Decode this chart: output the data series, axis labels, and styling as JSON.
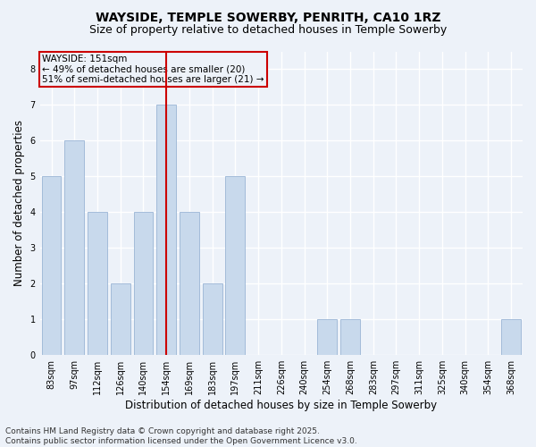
{
  "title1": "WAYSIDE, TEMPLE SOWERBY, PENRITH, CA10 1RZ",
  "title2": "Size of property relative to detached houses in Temple Sowerby",
  "xlabel": "Distribution of detached houses by size in Temple Sowerby",
  "ylabel": "Number of detached properties",
  "categories": [
    "83sqm",
    "97sqm",
    "112sqm",
    "126sqm",
    "140sqm",
    "154sqm",
    "169sqm",
    "183sqm",
    "197sqm",
    "211sqm",
    "226sqm",
    "240sqm",
    "254sqm",
    "268sqm",
    "283sqm",
    "297sqm",
    "311sqm",
    "325sqm",
    "340sqm",
    "354sqm",
    "368sqm"
  ],
  "values": [
    5,
    6,
    4,
    2,
    4,
    7,
    4,
    2,
    5,
    0,
    0,
    0,
    1,
    1,
    0,
    0,
    0,
    0,
    0,
    0,
    1
  ],
  "bar_color": "#c8d9ec",
  "bar_edgecolor": "#9ab5d5",
  "redline_index": 5,
  "annotation_title": "WAYSIDE: 151sqm",
  "annotation_line1": "← 49% of detached houses are smaller (20)",
  "annotation_line2": "51% of semi-detached houses are larger (21) →",
  "vline_color": "#cc0000",
  "ylim": [
    0,
    8.5
  ],
  "yticks": [
    0,
    1,
    2,
    3,
    4,
    5,
    6,
    7,
    8
  ],
  "footer1": "Contains HM Land Registry data © Crown copyright and database right 2025.",
  "footer2": "Contains public sector information licensed under the Open Government Licence v3.0.",
  "bg_color": "#edf2f9",
  "plot_bg_color": "#edf2f9",
  "grid_color": "#ffffff",
  "title1_fontsize": 10,
  "title2_fontsize": 9,
  "xlabel_fontsize": 8.5,
  "ylabel_fontsize": 8.5,
  "tick_fontsize": 7,
  "annotation_fontsize": 7.5,
  "footer_fontsize": 6.5
}
